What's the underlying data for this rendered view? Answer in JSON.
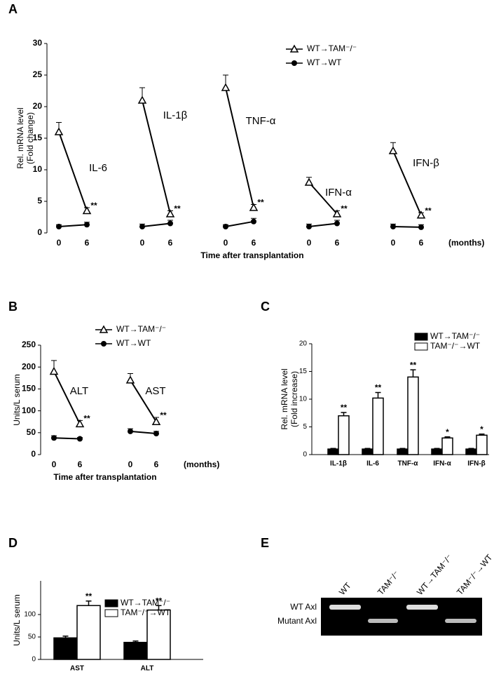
{
  "chart_data": [
    {
      "type": "line",
      "panel": "A",
      "ylabel": [
        "Rel. mRNA level",
        "(Fold change)"
      ],
      "xlabel": "Time after transplantation",
      "x_unit": "(months)",
      "ylim": [
        0,
        30
      ],
      "yticks": [
        0,
        5,
        10,
        15,
        20,
        25,
        30
      ],
      "groups": [
        {
          "label": "IL-6",
          "categories": [
            "0",
            "6"
          ]
        },
        {
          "label": "IL-1β",
          "categories": [
            "0",
            "6"
          ]
        },
        {
          "label": "TNF-α",
          "categories": [
            "0",
            "6"
          ]
        },
        {
          "label": "IFN-α",
          "categories": [
            "0",
            "6"
          ]
        },
        {
          "label": "IFN-β",
          "categories": [
            "0",
            "6"
          ]
        }
      ],
      "series": [
        {
          "name": "WT→TAM⁻/⁻",
          "marker": "triangle-open",
          "color": "#000000",
          "values": [
            [
              16,
              3.5
            ],
            [
              21,
              3
            ],
            [
              23,
              4
            ],
            [
              8,
              3
            ],
            [
              13,
              2.8
            ]
          ],
          "errors": [
            [
              1.5,
              0.5
            ],
            [
              2,
              0.5
            ],
            [
              2,
              0.5
            ],
            [
              0.8,
              0.5
            ],
            [
              1.3,
              0.4
            ]
          ],
          "sig": [
            "**",
            "**",
            "**",
            "**",
            "**"
          ]
        },
        {
          "name": "WT→WT",
          "marker": "circle-filled",
          "color": "#000000",
          "values": [
            [
              1,
              1.3
            ],
            [
              1,
              1.5
            ],
            [
              1,
              1.8
            ],
            [
              1,
              1.5
            ],
            [
              1,
              0.9
            ]
          ],
          "errors": [
            [
              0.3,
              0.4
            ],
            [
              0.4,
              0.5
            ],
            [
              0.3,
              0.5
            ],
            [
              0.4,
              0.5
            ],
            [
              0.4,
              0.4
            ]
          ]
        }
      ]
    },
    {
      "type": "line",
      "panel": "B",
      "ylabel": [
        "Units/L serum"
      ],
      "xlabel": "Time after transplantation",
      "x_unit": "(months)",
      "ylim": [
        0,
        250
      ],
      "yticks": [
        0,
        50,
        100,
        150,
        200,
        250
      ],
      "groups": [
        {
          "label": "ALT",
          "categories": [
            "0",
            "6"
          ]
        },
        {
          "label": "AST",
          "categories": [
            "0",
            "6"
          ]
        }
      ],
      "series": [
        {
          "name": "WT→TAM⁻/⁻",
          "marker": "triangle-open",
          "color": "#000000",
          "values": [
            [
              190,
              70
            ],
            [
              170,
              75
            ]
          ],
          "errors": [
            [
              25,
              8
            ],
            [
              15,
              10
            ]
          ],
          "sig": [
            "**",
            "**"
          ]
        },
        {
          "name": "WT→WT",
          "marker": "circle-filled",
          "color": "#000000",
          "values": [
            [
              38,
              36
            ],
            [
              53,
              48
            ]
          ],
          "errors": [
            [
              5,
              3
            ],
            [
              6,
              5
            ]
          ]
        }
      ]
    },
    {
      "type": "bar",
      "panel": "C",
      "ylabel": [
        "Rel. mRNA level",
        "(Fold increase)"
      ],
      "ylim": [
        0,
        20
      ],
      "yticks": [
        0,
        5,
        10,
        15,
        20
      ],
      "categories": [
        "IL-1β",
        "IL-6",
        "TNF-α",
        "IFN-α",
        "IFN-β"
      ],
      "series": [
        {
          "name": "WT→TAM⁻/⁻",
          "color": "#000000",
          "values": [
            1,
            1,
            1,
            1,
            1
          ],
          "errors": [
            0.1,
            0.1,
            0.1,
            0.1,
            0.1
          ]
        },
        {
          "name": "TAM⁻/⁻→WT",
          "color": "#ffffff",
          "values": [
            7,
            10.2,
            14,
            3,
            3.5
          ],
          "errors": [
            0.6,
            1,
            1.3,
            0.2,
            0.2
          ],
          "sig": [
            "**",
            "**",
            "**",
            "*",
            "*"
          ]
        }
      ]
    },
    {
      "type": "bar",
      "panel": "D",
      "ylabel": [
        "Units/L serum"
      ],
      "ylim": [
        0,
        175
      ],
      "yticks": [
        0,
        50,
        100
      ],
      "categories": [
        "AST",
        "ALT"
      ],
      "series": [
        {
          "name": "WT→TAM⁻/⁻",
          "color": "#000000",
          "values": [
            48,
            38
          ],
          "errors": [
            4,
            3
          ]
        },
        {
          "name": "TAM⁻/⁻→WT",
          "color": "#ffffff",
          "values": [
            120,
            110
          ],
          "errors": [
            10,
            10
          ],
          "sig": [
            "**",
            "**"
          ]
        }
      ]
    }
  ],
  "gel": {
    "panel": "E",
    "lanes": [
      "WT",
      "TAM⁻/⁻",
      "WT→TAM⁻/⁻",
      "TAM⁻/⁻→WT"
    ],
    "rows": [
      "WT Axl",
      "Mutant Axl"
    ]
  }
}
